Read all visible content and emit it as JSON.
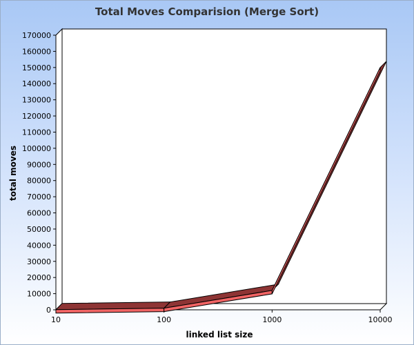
{
  "chart_data": {
    "type": "line",
    "title": "Total Moves Comparision (Merge Sort)",
    "xlabel": "linked list size",
    "ylabel": "total moves",
    "categories": [
      "10",
      "100",
      "1000",
      "10000"
    ],
    "y_ticks": [
      0,
      10000,
      20000,
      30000,
      40000,
      50000,
      60000,
      70000,
      80000,
      90000,
      100000,
      110000,
      120000,
      130000,
      140000,
      150000,
      160000,
      170000
    ],
    "ylim": [
      0,
      170000
    ],
    "series": [
      {
        "values": [
          100,
          1000,
          12000,
          150000
        ]
      }
    ],
    "series_color": "#f06464",
    "grid": false,
    "legend": "none",
    "style": "3d"
  }
}
